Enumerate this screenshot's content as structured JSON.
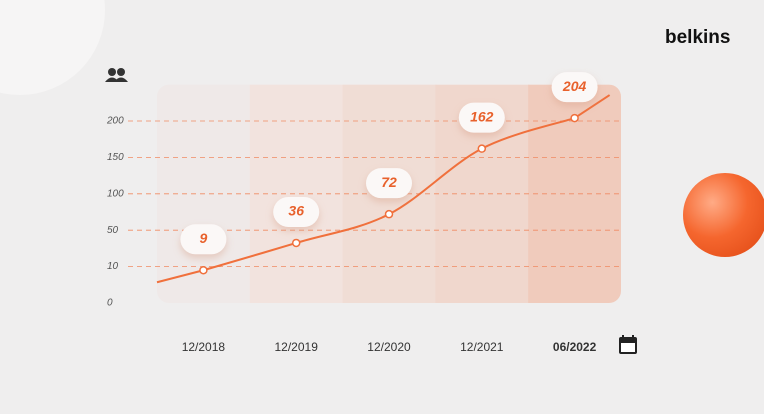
{
  "logo": "belkins",
  "chart_data": {
    "type": "line",
    "categories": [
      "12/2018",
      "12/2019",
      "12/2020",
      "12/2021",
      "06/2022"
    ],
    "values": [
      9,
      36,
      72,
      162,
      204
    ],
    "color": "#f0703c",
    "highlight_index": 4,
    "ylim": [
      0,
      250
    ],
    "yticks": [
      0,
      10,
      50,
      100,
      150,
      200
    ],
    "grid": true
  }
}
